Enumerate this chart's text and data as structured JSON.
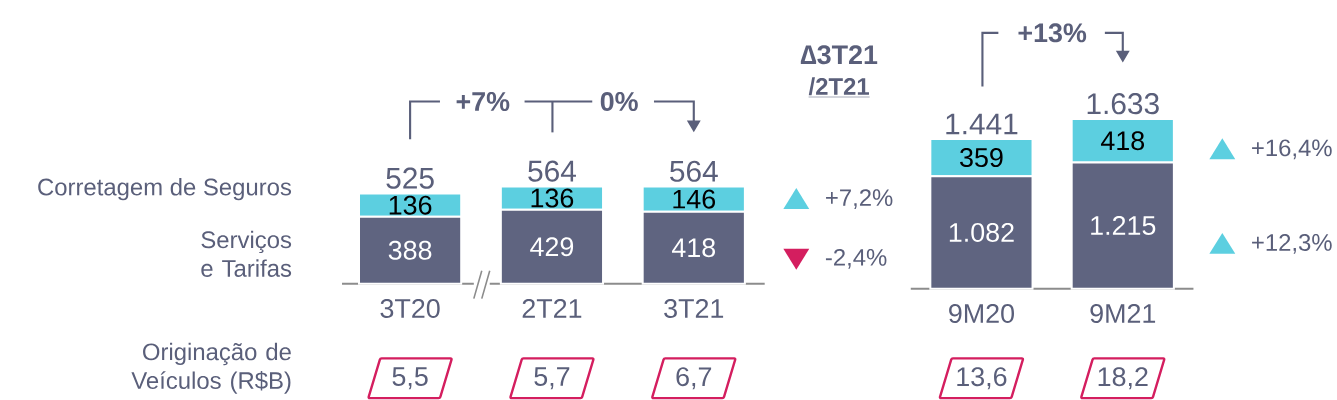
{
  "chart_data": [
    {
      "type": "bar",
      "stacked": true,
      "categories": [
        "3T20",
        "2T21",
        "3T21"
      ],
      "series": [
        {
          "name": "Serviços e Tarifas",
          "color": "#5f6480",
          "values": [
            388,
            429,
            418
          ],
          "value_labels": [
            "388",
            "429",
            "418"
          ]
        },
        {
          "name": "Corretagem de Seguros",
          "color": "#5ccfe0",
          "values": [
            136,
            136,
            146
          ],
          "value_labels": [
            "136",
            "136",
            "146"
          ]
        }
      ],
      "totals": [
        "525",
        "564",
        "564"
      ],
      "annotations": [
        "+7%",
        "0%",
        "∆3T21",
        "/2T21",
        "+7,2%",
        "-2,4%",
        "Originação de Veículos (R$B)",
        "5,5",
        "5,7",
        "6,7"
      ]
    },
    {
      "type": "bar",
      "stacked": true,
      "categories": [
        "9M20",
        "9M21"
      ],
      "series": [
        {
          "color": "#5f6480",
          "values": [
            1082,
            1215
          ],
          "value_labels": [
            "1.082",
            "1.215"
          ]
        },
        {
          "color": "#5ccfe0",
          "values": [
            359,
            418
          ],
          "value_labels": [
            "359",
            "418"
          ]
        }
      ],
      "totals": [
        "1.441",
        "1.633"
      ],
      "annotations": [
        "+13%",
        "+16,4%",
        "+12,3%",
        "13,6",
        "18,2"
      ]
    }
  ]
}
